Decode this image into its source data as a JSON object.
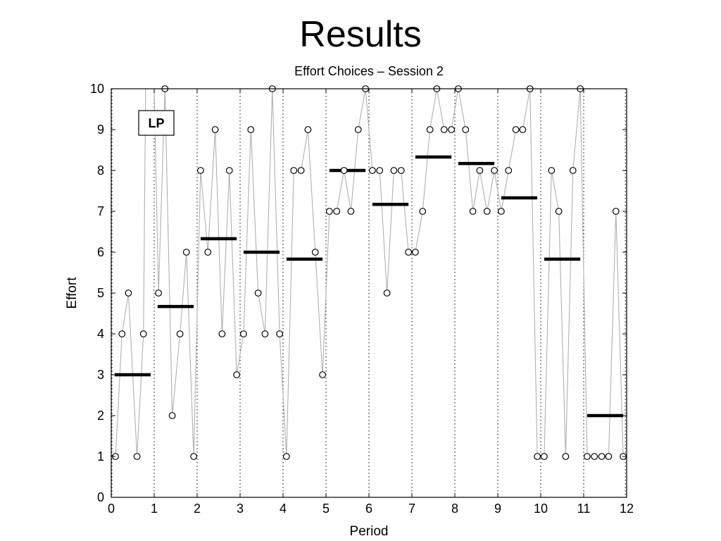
{
  "slide": {
    "title": "Results"
  },
  "chart_data": {
    "type": "scatter",
    "title": "Effort Choices – Session 2",
    "xlabel": "Period",
    "ylabel": "Effort",
    "xlim": [
      0,
      12
    ],
    "ylim": [
      0,
      10
    ],
    "xticks": [
      0,
      1,
      2,
      3,
      4,
      5,
      6,
      7,
      8,
      9,
      10,
      11,
      12
    ],
    "yticks": [
      0,
      1,
      2,
      3,
      4,
      5,
      6,
      7,
      8,
      9,
      10
    ],
    "grid": "vertical dotted lines at each period",
    "annotation": "LP",
    "colors": {
      "line": "#b0b0b0",
      "marker": "#000000",
      "mean": "#000000"
    },
    "series": [
      {
        "kind": "individual efforts",
        "points": [
          [
            0.1,
            1
          ],
          [
            0.25,
            4
          ],
          [
            0.4,
            5
          ],
          [
            0.6,
            1
          ],
          [
            0.75,
            4
          ],
          [
            0.8,
            10
          ],
          [
            1.0,
            10
          ],
          [
            1.1,
            5
          ],
          [
            1.25,
            10
          ],
          [
            1.42,
            2
          ],
          [
            1.6,
            4
          ],
          [
            1.75,
            6
          ],
          [
            1.92,
            1
          ],
          [
            2.08,
            8
          ],
          [
            2.25,
            6
          ],
          [
            2.42,
            9
          ],
          [
            2.58,
            4
          ],
          [
            2.75,
            8
          ],
          [
            2.92,
            3
          ],
          [
            3.08,
            4
          ],
          [
            3.25,
            9
          ],
          [
            3.42,
            5
          ],
          [
            3.58,
            4
          ],
          [
            3.75,
            10
          ],
          [
            3.92,
            4
          ],
          [
            4.08,
            1
          ],
          [
            4.25,
            8
          ],
          [
            4.42,
            8
          ],
          [
            4.58,
            9
          ],
          [
            4.75,
            6
          ],
          [
            4.92,
            3
          ],
          [
            5.08,
            7
          ],
          [
            5.25,
            7
          ],
          [
            5.42,
            8
          ],
          [
            5.58,
            7
          ],
          [
            5.75,
            9
          ],
          [
            5.92,
            10
          ],
          [
            6.08,
            8
          ],
          [
            6.25,
            8
          ],
          [
            6.42,
            5
          ],
          [
            6.58,
            8
          ],
          [
            6.75,
            8
          ],
          [
            6.92,
            6
          ],
          [
            7.08,
            6
          ],
          [
            7.25,
            7
          ],
          [
            7.42,
            9
          ],
          [
            7.58,
            10
          ],
          [
            7.75,
            9
          ],
          [
            7.92,
            9
          ],
          [
            8.08,
            10
          ],
          [
            8.25,
            9
          ],
          [
            8.42,
            7
          ],
          [
            8.58,
            8
          ],
          [
            8.75,
            7
          ],
          [
            8.92,
            8
          ],
          [
            9.08,
            7
          ],
          [
            9.25,
            8
          ],
          [
            9.42,
            9
          ],
          [
            9.58,
            9
          ],
          [
            9.75,
            10
          ],
          [
            9.92,
            1
          ],
          [
            10.08,
            1
          ],
          [
            10.25,
            8
          ],
          [
            10.42,
            7
          ],
          [
            10.58,
            1
          ],
          [
            10.75,
            8
          ],
          [
            10.92,
            10
          ],
          [
            11.08,
            1
          ],
          [
            11.25,
            1
          ],
          [
            11.42,
            1
          ],
          [
            11.58,
            1
          ],
          [
            11.75,
            7
          ],
          [
            11.92,
            1
          ]
        ],
        "marker_skip": [
          5,
          6
        ]
      },
      {
        "kind": "period means",
        "segments": [
          {
            "period": 0,
            "value": 3.0
          },
          {
            "period": 1,
            "value": 4.67
          },
          {
            "period": 2,
            "value": 6.33
          },
          {
            "period": 3,
            "value": 6.0
          },
          {
            "period": 4,
            "value": 5.83
          },
          {
            "period": 5,
            "value": 8.0
          },
          {
            "period": 6,
            "value": 7.17
          },
          {
            "period": 7,
            "value": 8.33
          },
          {
            "period": 8,
            "value": 8.17
          },
          {
            "period": 9,
            "value": 7.33
          },
          {
            "period": 10,
            "value": 5.83
          },
          {
            "period": 11,
            "value": 2.0
          }
        ]
      }
    ]
  }
}
